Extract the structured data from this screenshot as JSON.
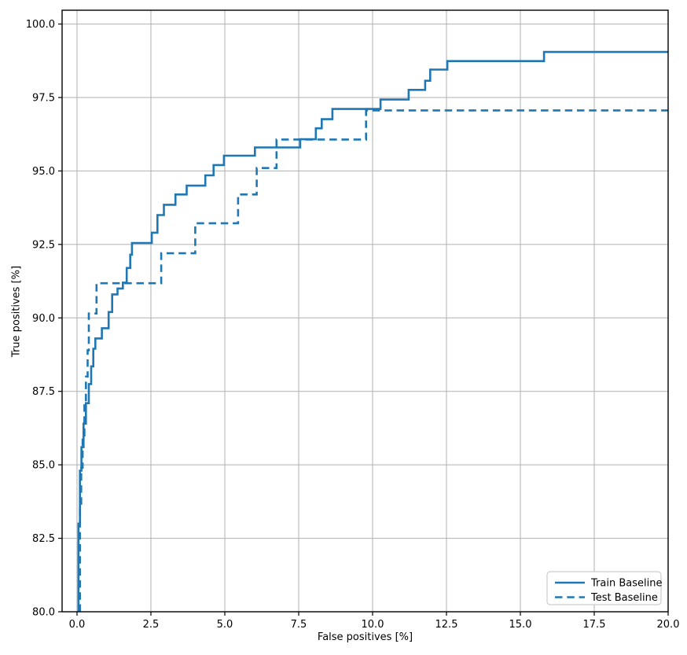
{
  "chart_data": {
    "type": "line",
    "subtype": "step-roc",
    "title": "",
    "xlabel": "False positives [%]",
    "ylabel": "True positives [%]",
    "xlim": [
      -0.505,
      20.0
    ],
    "ylim": [
      80.0,
      100.47
    ],
    "grid": true,
    "legend_position": "lower right",
    "line_color": "#1f77b4",
    "grid_color": "#b0b0b0",
    "spine_color": "#000000",
    "legend_border_color": "#cccccc",
    "xticks": [
      0.0,
      2.5,
      5.0,
      7.5,
      10.0,
      12.5,
      15.0,
      17.5,
      20.0
    ],
    "xtick_labels": [
      "0.0",
      "2.5",
      "5.0",
      "7.5",
      "10.0",
      "12.5",
      "15.0",
      "17.5",
      "20.0"
    ],
    "yticks": [
      80.0,
      82.5,
      85.0,
      87.5,
      90.0,
      92.5,
      95.0,
      97.5,
      100.0
    ],
    "ytick_labels": [
      "80.0",
      "82.5",
      "85.0",
      "87.5",
      "90.0",
      "92.5",
      "95.0",
      "97.5",
      "100.0"
    ],
    "series": [
      {
        "name": "Train Baseline",
        "style": "solid",
        "points": [
          [
            0.05,
            80.0
          ],
          [
            0.05,
            83.0
          ],
          [
            0.1,
            83.0
          ],
          [
            0.1,
            84.8
          ],
          [
            0.15,
            84.8
          ],
          [
            0.15,
            85.6
          ],
          [
            0.22,
            85.6
          ],
          [
            0.22,
            86.4
          ],
          [
            0.3,
            86.4
          ],
          [
            0.3,
            87.1
          ],
          [
            0.4,
            87.1
          ],
          [
            0.4,
            87.75
          ],
          [
            0.48,
            87.75
          ],
          [
            0.48,
            88.35
          ],
          [
            0.55,
            88.35
          ],
          [
            0.55,
            88.95
          ],
          [
            0.62,
            88.95
          ],
          [
            0.62,
            89.3
          ],
          [
            0.84,
            89.3
          ],
          [
            0.84,
            89.65
          ],
          [
            1.07,
            89.65
          ],
          [
            1.07,
            90.2
          ],
          [
            1.19,
            90.2
          ],
          [
            1.19,
            90.8
          ],
          [
            1.37,
            90.8
          ],
          [
            1.37,
            91.0
          ],
          [
            1.55,
            91.0
          ],
          [
            1.55,
            91.2
          ],
          [
            1.68,
            91.2
          ],
          [
            1.68,
            91.7
          ],
          [
            1.8,
            91.7
          ],
          [
            1.8,
            92.15
          ],
          [
            1.86,
            92.15
          ],
          [
            1.86,
            92.55
          ],
          [
            2.53,
            92.55
          ],
          [
            2.53,
            92.9
          ],
          [
            2.72,
            92.9
          ],
          [
            2.72,
            93.5
          ],
          [
            2.94,
            93.5
          ],
          [
            2.94,
            93.85
          ],
          [
            3.33,
            93.85
          ],
          [
            3.33,
            94.2
          ],
          [
            3.71,
            94.2
          ],
          [
            3.71,
            94.5
          ],
          [
            4.34,
            94.5
          ],
          [
            4.34,
            94.85
          ],
          [
            4.62,
            94.85
          ],
          [
            4.62,
            95.2
          ],
          [
            4.97,
            95.2
          ],
          [
            4.97,
            95.52
          ],
          [
            6.02,
            95.52
          ],
          [
            6.02,
            95.8
          ],
          [
            7.55,
            95.8
          ],
          [
            7.55,
            96.08
          ],
          [
            8.08,
            96.08
          ],
          [
            8.08,
            96.45
          ],
          [
            8.28,
            96.45
          ],
          [
            8.28,
            96.76
          ],
          [
            8.64,
            96.76
          ],
          [
            8.64,
            97.11
          ],
          [
            10.27,
            97.11
          ],
          [
            10.27,
            97.43
          ],
          [
            11.22,
            97.43
          ],
          [
            11.22,
            97.76
          ],
          [
            11.78,
            97.76
          ],
          [
            11.78,
            98.07
          ],
          [
            11.95,
            98.07
          ],
          [
            11.95,
            98.45
          ],
          [
            12.53,
            98.45
          ],
          [
            12.53,
            98.74
          ],
          [
            15.8,
            98.74
          ],
          [
            15.8,
            99.05
          ],
          [
            20.0,
            99.05
          ]
        ]
      },
      {
        "name": "Test Baseline",
        "style": "dashed",
        "points": [
          [
            0.1,
            80.0
          ],
          [
            0.1,
            83.5
          ],
          [
            0.14,
            83.5
          ],
          [
            0.14,
            84.9
          ],
          [
            0.19,
            84.9
          ],
          [
            0.19,
            86.0
          ],
          [
            0.25,
            86.0
          ],
          [
            0.25,
            87.2
          ],
          [
            0.3,
            87.2
          ],
          [
            0.3,
            88.0
          ],
          [
            0.36,
            88.0
          ],
          [
            0.36,
            88.9
          ],
          [
            0.4,
            88.9
          ],
          [
            0.4,
            90.15
          ],
          [
            0.66,
            90.15
          ],
          [
            0.66,
            91.18
          ],
          [
            2.85,
            91.18
          ],
          [
            2.85,
            92.2
          ],
          [
            4.0,
            92.2
          ],
          [
            4.0,
            93.22
          ],
          [
            5.45,
            93.22
          ],
          [
            5.45,
            94.2
          ],
          [
            6.08,
            94.2
          ],
          [
            6.08,
            95.1
          ],
          [
            6.75,
            95.1
          ],
          [
            6.75,
            96.07
          ],
          [
            9.78,
            96.07
          ],
          [
            9.78,
            97.06
          ],
          [
            20.0,
            97.06
          ]
        ]
      }
    ]
  }
}
